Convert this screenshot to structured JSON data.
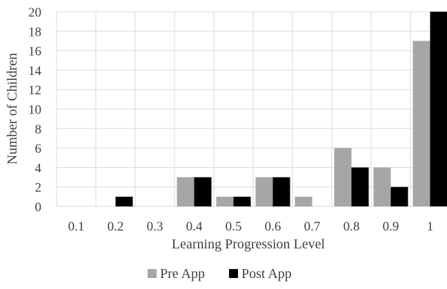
{
  "chart_data": {
    "type": "bar",
    "title": "",
    "xlabel": "Learning  Progression  Level",
    "ylabel": "Number  of Children",
    "categories": [
      "0.1",
      "0.2",
      "0.3",
      "0.4",
      "0.5",
      "0.6",
      "0.7",
      "0.8",
      "0.9",
      "1"
    ],
    "series": [
      {
        "name": "Pre App",
        "color": "#a6a6a6",
        "values": [
          0,
          0,
          0,
          3,
          1,
          3,
          1,
          6,
          4,
          17
        ]
      },
      {
        "name": "Post App",
        "color": "#000000",
        "values": [
          0,
          1,
          0,
          3,
          1,
          3,
          0,
          4,
          2,
          20
        ]
      }
    ],
    "ylim": [
      0,
      20
    ],
    "yticks": [
      "0",
      "2",
      "4",
      "6",
      "8",
      "10",
      "12",
      "14",
      "16",
      "18",
      "20"
    ],
    "grid": true,
    "legend_position": "bottom",
    "colors": {
      "grid": "#d9d9d9",
      "text": "#404040"
    }
  }
}
